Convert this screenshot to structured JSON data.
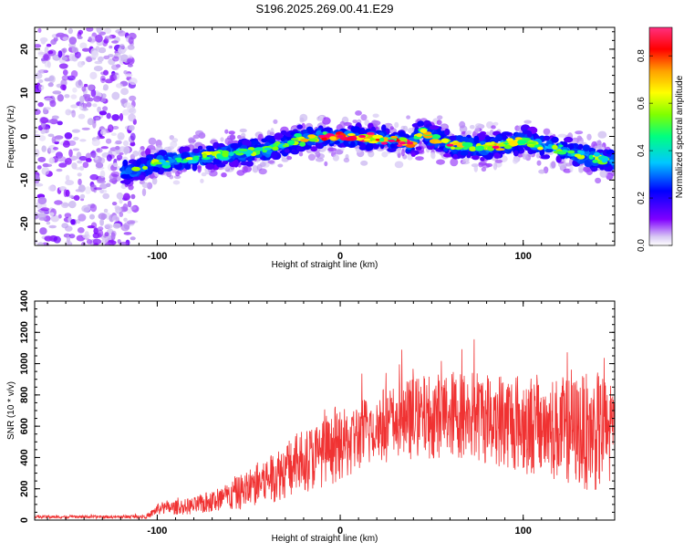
{
  "title": "S196.2025.269.00.41.E29",
  "chart_data": [
    {
      "type": "heatmap",
      "name": "spectrogram",
      "xlabel": "Height of straight line (km)",
      "ylabel": "Frequency (Hz)",
      "xlim": [
        -167,
        150
      ],
      "ylim": [
        -25,
        25
      ],
      "x_ticks": [
        -100,
        0,
        100
      ],
      "y_ticks": [
        -20,
        -10,
        0,
        10,
        20
      ],
      "colorbar": {
        "label": "Normalized spectral amplitude",
        "range": [
          0.0,
          0.92
        ],
        "ticks": [
          0.0,
          0.2,
          0.4,
          0.6,
          0.8
        ],
        "colors": [
          "#ffffff",
          "#c8b4f0",
          "#8000ff",
          "#0000ff",
          "#00c8ff",
          "#00ff80",
          "#80ff00",
          "#ffff00",
          "#ffa000",
          "#ff0000",
          "#ff0080",
          "#ff40c0"
        ]
      },
      "ridge": {
        "x": [
          -115,
          -100,
          -80,
          -60,
          -40,
          -25,
          -10,
          0,
          20,
          40,
          44,
          60,
          80,
          100,
          120,
          140,
          150
        ],
        "y": [
          -8,
          -6,
          -5,
          -4,
          -3,
          -1,
          0,
          0,
          -0.5,
          -1.5,
          1,
          -2,
          -2.5,
          -1,
          -3,
          -5,
          -6
        ]
      }
    },
    {
      "type": "line",
      "name": "snr",
      "xlabel": "Height of straight line (km)",
      "ylabel": "SNR (10 * v/v)",
      "xlim": [
        -167,
        150
      ],
      "ylim": [
        0,
        1400
      ],
      "x_ticks": [
        -100,
        0,
        100
      ],
      "y_ticks": [
        0,
        200,
        400,
        600,
        800,
        1000,
        1200,
        1400
      ],
      "color": "#f03232",
      "envelope": {
        "x": [
          -167,
          -120,
          -105,
          -100,
          -80,
          -60,
          -40,
          -20,
          0,
          20,
          40,
          60,
          80,
          100,
          120,
          140,
          150
        ],
        "mean": [
          20,
          20,
          25,
          70,
          90,
          150,
          260,
          380,
          470,
          600,
          650,
          680,
          660,
          620,
          580,
          560,
          570
        ],
        "spread": [
          12,
          12,
          18,
          45,
          70,
          120,
          200,
          260,
          280,
          300,
          330,
          350,
          380,
          400,
          420,
          480,
          480
        ]
      }
    }
  ]
}
